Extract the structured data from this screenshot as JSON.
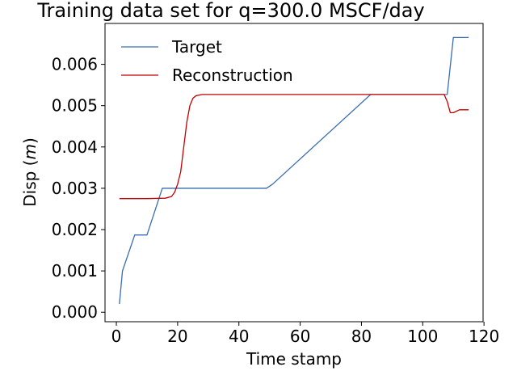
{
  "chart_data": {
    "type": "line",
    "title": "Training data set for q=300.0 MSCF/day",
    "xlabel": "Time stamp",
    "ylabel_prefix": "Disp (",
    "ylabel_var": "m",
    "ylabel_suffix": ")",
    "xlim": [
      -3.7,
      119.7
    ],
    "ylim": [
      -0.00023,
      0.00699
    ],
    "xticks": [
      0,
      20,
      40,
      60,
      80,
      100,
      120
    ],
    "xtick_labels": [
      "0",
      "20",
      "40",
      "60",
      "80",
      "100",
      "120"
    ],
    "yticks": [
      0.0,
      0.001,
      0.002,
      0.003,
      0.004,
      0.005,
      0.006
    ],
    "ytick_labels": [
      "0.000",
      "0.001",
      "0.002",
      "0.003",
      "0.004",
      "0.005",
      "0.006"
    ],
    "grid": false,
    "legend_position": "top-left",
    "series": [
      {
        "name": "Target",
        "color": "#3a6db1",
        "points": [
          [
            1,
            0.0002
          ],
          [
            2,
            0.001
          ],
          [
            6,
            0.00187
          ],
          [
            10,
            0.00187
          ],
          [
            15,
            0.003
          ],
          [
            49,
            0.003
          ],
          [
            51,
            0.0031
          ],
          [
            83,
            0.00527
          ],
          [
            108,
            0.00527
          ],
          [
            110,
            0.00665
          ],
          [
            115,
            0.00665
          ]
        ]
      },
      {
        "name": "Reconstruction",
        "color": "#c00000",
        "points": [
          [
            1,
            0.00275
          ],
          [
            10,
            0.00275
          ],
          [
            16,
            0.00276
          ],
          [
            18,
            0.0028
          ],
          [
            19,
            0.0029
          ],
          [
            20,
            0.0031
          ],
          [
            21,
            0.0034
          ],
          [
            22,
            0.004
          ],
          [
            23,
            0.0046
          ],
          [
            24,
            0.005
          ],
          [
            25,
            0.00518
          ],
          [
            26,
            0.00524
          ],
          [
            28,
            0.00527
          ],
          [
            107,
            0.00527
          ],
          [
            108,
            0.0051
          ],
          [
            109,
            0.00483
          ],
          [
            110,
            0.00483
          ],
          [
            112,
            0.0049
          ],
          [
            115,
            0.0049
          ]
        ]
      }
    ]
  }
}
